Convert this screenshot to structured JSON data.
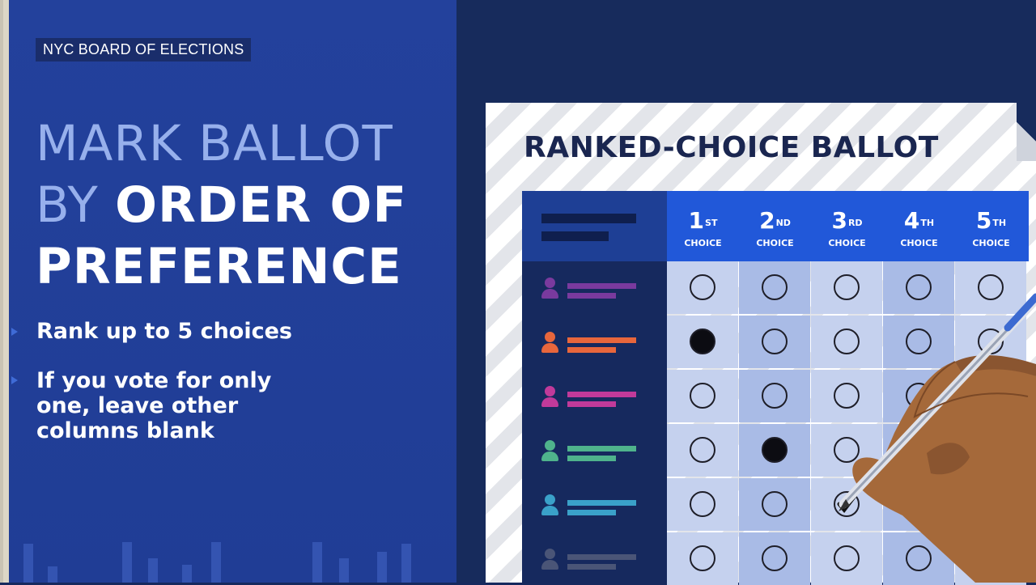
{
  "source_tag": "NYC BOARD OF ELECTIONS",
  "headline": {
    "line1_light": "MARK BALLOT",
    "line2_light": "BY",
    "line2_bold": "ORDER OF",
    "line3_bold": "PREFERENCE"
  },
  "bullets": [
    {
      "lines": [
        "Rank up to 5 choices"
      ]
    },
    {
      "lines": [
        "If you vote for only",
        "one, leave other",
        "columns blank"
      ]
    }
  ],
  "ballot": {
    "title": "RANKED-CHOICE BALLOT",
    "choices": [
      {
        "num": "1",
        "suffix": "ST",
        "label": "CHOICE"
      },
      {
        "num": "2",
        "suffix": "ND",
        "label": "CHOICE"
      },
      {
        "num": "3",
        "suffix": "RD",
        "label": "CHOICE"
      },
      {
        "num": "4",
        "suffix": "TH",
        "label": "CHOICE"
      },
      {
        "num": "5",
        "suffix": "TH",
        "label": "CHOICE"
      }
    ],
    "candidate_colors": [
      "#7a3a9e",
      "#e8663c",
      "#c13a9a",
      "#4fb38c",
      "#3aa1c9",
      "#4a5577"
    ],
    "marks": [
      {
        "row": 1,
        "col": 0,
        "type": "filled"
      },
      {
        "row": 3,
        "col": 1,
        "type": "filled"
      },
      {
        "row": 4,
        "col": 2,
        "type": "checked"
      }
    ]
  },
  "colors": {
    "panel_blue": "#23419c",
    "header_blue": "#2158d9",
    "light_cell": "#c5d1ee",
    "mid_cell": "#a9bbe6"
  }
}
